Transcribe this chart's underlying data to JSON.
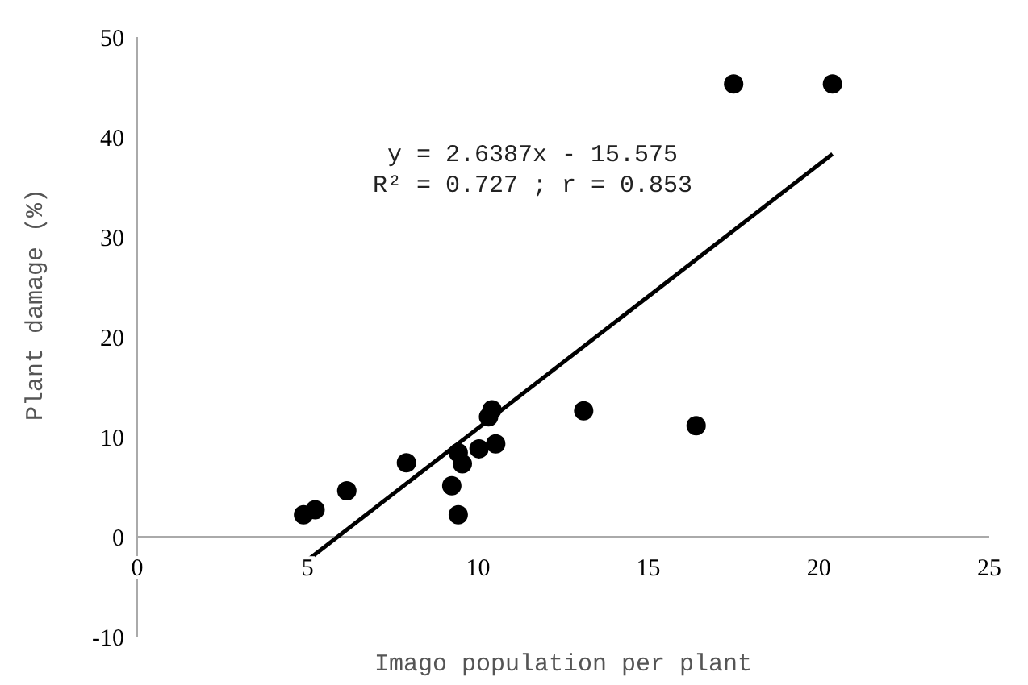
{
  "chart_data": {
    "type": "scatter",
    "xlabel": "Imago population per plant",
    "ylabel": "Plant damage (%)",
    "xlim": [
      0,
      25
    ],
    "xticks": [
      0,
      5,
      10,
      15,
      20,
      25
    ],
    "ylim": [
      -10,
      50
    ],
    "yticks": [
      -10,
      0,
      10,
      20,
      30,
      40,
      50
    ],
    "grid": false,
    "marker": "circle",
    "annotations": [
      "y = 2.6387x - 15.575",
      "R² = 0.727 ; r = 0.853"
    ],
    "series": [
      {
        "color": "#000000",
        "x": [
          4.88,
          5.22,
          6.15,
          7.9,
          9.23,
          9.42,
          9.42,
          9.54,
          10.03,
          10.31,
          10.41,
          10.52,
          13.1,
          16.4,
          17.5,
          20.4
        ],
        "values": [
          2.2,
          2.7,
          4.6,
          7.4,
          5.1,
          2.2,
          8.4,
          7.3,
          8.8,
          12.0,
          12.7,
          9.3,
          12.6,
          11.1,
          45.3,
          45.3
        ]
      },
      {
        "type": "line",
        "color": "#000000",
        "line_style": "solid",
        "marker": "none",
        "x": [
          4.9,
          20.4
        ],
        "values": [
          -2.6,
          38.3
        ]
      }
    ]
  }
}
